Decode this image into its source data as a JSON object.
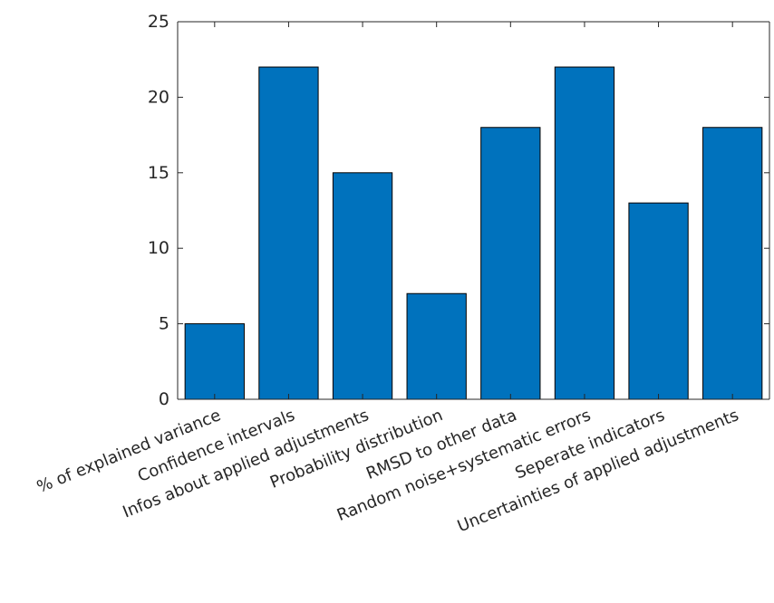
{
  "chart_data": {
    "type": "bar",
    "title": "",
    "xlabel": "",
    "ylabel": "",
    "categories": [
      "% of explained variance",
      "Confidence intervals",
      "Infos about applied adjustments",
      "Probability distribution",
      "RMSD to other data",
      "Random noise+systematic errors",
      "Seperate indicators",
      "Uncertainties of applied adjustments"
    ],
    "values": [
      5,
      22,
      15,
      7,
      18,
      22,
      13,
      18
    ],
    "ylim": [
      0,
      25
    ],
    "yticks": [
      0,
      5,
      10,
      15,
      20,
      25
    ],
    "grid": false,
    "legend": "none",
    "bar_color": "#0072BD",
    "bar_edge_color": "#000000"
  }
}
